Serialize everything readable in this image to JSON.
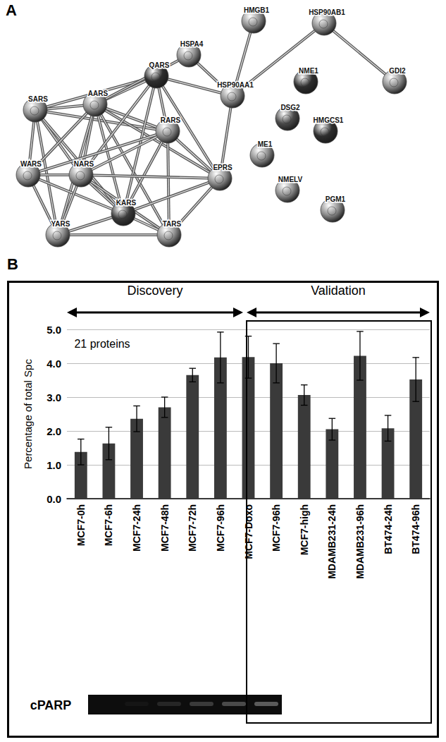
{
  "panel_labels": [
    "A",
    "B"
  ],
  "network": {
    "nodes": [
      {
        "label": "HSPA4",
        "color": "#8c8c8c"
      },
      {
        "label": "HMGB1",
        "color": "#8c8c8c"
      },
      {
        "label": "HSP90AB1",
        "color": "#8c8c8c"
      },
      {
        "label": "GDI2",
        "color": "#8c8c8c"
      },
      {
        "label": "HSP90AA1",
        "color": "#8c8c8c"
      },
      {
        "label": "QARS",
        "color": "#2e2e2e"
      },
      {
        "label": "AARS",
        "color": "#8c8c8c"
      },
      {
        "label": "SARS",
        "color": "#8c8c8c"
      },
      {
        "label": "RARS",
        "color": "#8c8c8c"
      },
      {
        "label": "WARS",
        "color": "#8c8c8c"
      },
      {
        "label": "NARS",
        "color": "#8c8c8c"
      },
      {
        "label": "EPRS",
        "color": "#8c8c8c"
      },
      {
        "label": "KARS",
        "color": "#3a3a3a"
      },
      {
        "label": "YARS",
        "color": "#8c8c8c"
      },
      {
        "label": "TARS",
        "color": "#8c8c8c"
      },
      {
        "label": "NME1",
        "color": "#2e2e2e"
      },
      {
        "label": "DSG2",
        "color": "#4a4a4a"
      },
      {
        "label": "HMGCS1",
        "color": "#2e2e2e"
      },
      {
        "label": "ME1",
        "color": "#8c8c8c"
      },
      {
        "label": "NMELV",
        "color": "#8c8c8c"
      },
      {
        "label": "PGM1",
        "color": "#8c8c8c"
      }
    ],
    "edges": [
      [
        "SARS",
        "AARS"
      ],
      [
        "SARS",
        "WARS"
      ],
      [
        "SARS",
        "NARS"
      ],
      [
        "SARS",
        "KARS"
      ],
      [
        "SARS",
        "YARS"
      ],
      [
        "SARS",
        "RARS"
      ],
      [
        "SARS",
        "QARS"
      ],
      [
        "AARS",
        "QARS"
      ],
      [
        "AARS",
        "RARS"
      ],
      [
        "AARS",
        "WARS"
      ],
      [
        "AARS",
        "NARS"
      ],
      [
        "AARS",
        "KARS"
      ],
      [
        "AARS",
        "YARS"
      ],
      [
        "AARS",
        "EPRS"
      ],
      [
        "AARS",
        "TARS"
      ],
      [
        "QARS",
        "RARS"
      ],
      [
        "QARS",
        "EPRS"
      ],
      [
        "QARS",
        "NARS"
      ],
      [
        "QARS",
        "KARS"
      ],
      [
        "RARS",
        "EPRS"
      ],
      [
        "RARS",
        "NARS"
      ],
      [
        "RARS",
        "KARS"
      ],
      [
        "RARS",
        "TARS"
      ],
      [
        "RARS",
        "WARS"
      ],
      [
        "WARS",
        "NARS"
      ],
      [
        "WARS",
        "YARS"
      ],
      [
        "WARS",
        "KARS"
      ],
      [
        "NARS",
        "KARS"
      ],
      [
        "NARS",
        "YARS"
      ],
      [
        "NARS",
        "EPRS"
      ],
      [
        "NARS",
        "TARS"
      ],
      [
        "KARS",
        "YARS"
      ],
      [
        "KARS",
        "TARS"
      ],
      [
        "KARS",
        "EPRS"
      ],
      [
        "YARS",
        "TARS"
      ],
      [
        "EPRS",
        "TARS"
      ],
      [
        "AARS",
        "HSPA4"
      ],
      [
        "HSPA4",
        "HSP90AA1"
      ],
      [
        "HMGB1",
        "HSP90AA1"
      ],
      [
        "QARS",
        "HSP90AA1"
      ],
      [
        "HSP90AA1",
        "HSP90AB1"
      ],
      [
        "HSP90AB1",
        "GDI2"
      ],
      [
        "HSP90AA1",
        "EPRS"
      ]
    ]
  },
  "chart_data": {
    "type": "bar",
    "categories": [
      "MCF7-0h",
      "MCF7-6h",
      "MCF7-24h",
      "MCF7-48h",
      "MCF7-72h",
      "MCF7-96h",
      "MCF7-Doxo",
      "MCF7-96h",
      "MCF7-high",
      "MDAMB231-24h",
      "MDAMB231-96h",
      "BT474-24h",
      "BT474-96h"
    ],
    "values": [
      1.38,
      1.63,
      2.36,
      2.7,
      3.65,
      4.17,
      4.18,
      4.0,
      3.06,
      2.05,
      4.22,
      2.08,
      3.52
    ],
    "errors": [
      0.38,
      0.48,
      0.38,
      0.3,
      0.2,
      0.75,
      0.62,
      0.58,
      0.3,
      0.32,
      0.72,
      0.38,
      0.65
    ],
    "color": "#3a3a3a",
    "ylim": [
      0,
      5
    ],
    "yticks": [
      {
        "value": 0,
        "label": "0.0"
      },
      {
        "value": 1,
        "label": "1.0"
      },
      {
        "value": 2,
        "label": "2.0"
      },
      {
        "value": 3,
        "label": "3.0"
      },
      {
        "value": 4,
        "label": "4.0"
      },
      {
        "value": 5,
        "label": "5.0"
      }
    ],
    "grid": true,
    "y_label": "Percentage of total Spc",
    "annotations": [
      "Discovery",
      "Validation",
      "21 proteins",
      "cPARP"
    ]
  }
}
